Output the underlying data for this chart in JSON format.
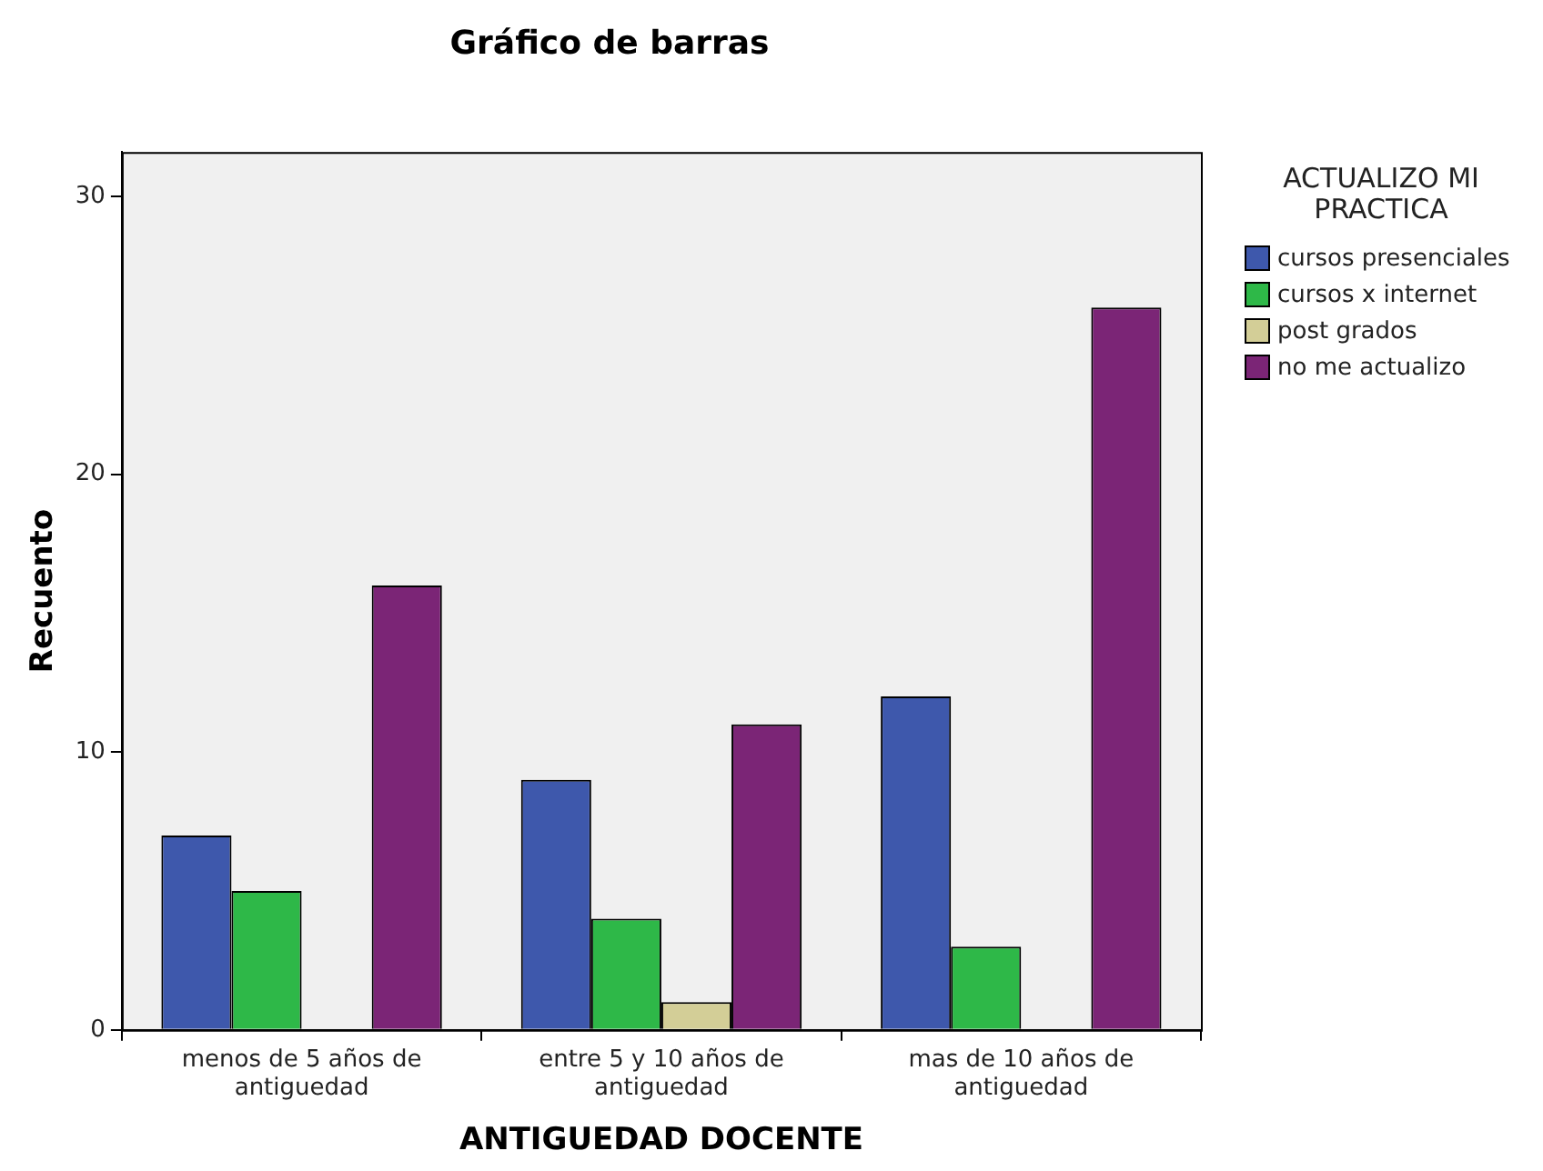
{
  "chart_data": {
    "type": "bar",
    "title": "Gráfico de barras",
    "xlabel": "ANTIGUEDAD DOCENTE",
    "ylabel": "Recuento",
    "legend_title": "ACTUALIZO MI PRACTICA",
    "categories": [
      "menos de 5 años de antiguedad",
      "entre 5 y 10 años de antiguedad",
      "mas de 10 años de antiguedad"
    ],
    "series": [
      {
        "name": "cursos presenciales",
        "color": "#3e58ac",
        "values": [
          7,
          9,
          12
        ]
      },
      {
        "name": "cursos x internet",
        "color": "#2eb848",
        "values": [
          5,
          4,
          3
        ]
      },
      {
        "name": "post grados",
        "color": "#d3ce97",
        "values": [
          0,
          1,
          0
        ]
      },
      {
        "name": "no me actualizo",
        "color": "#7b2576",
        "values": [
          16,
          11,
          26
        ]
      }
    ],
    "ylim": [
      0,
      31.6
    ],
    "yticks": [
      0,
      10,
      20,
      30
    ],
    "grid": false,
    "legend": "top right"
  }
}
